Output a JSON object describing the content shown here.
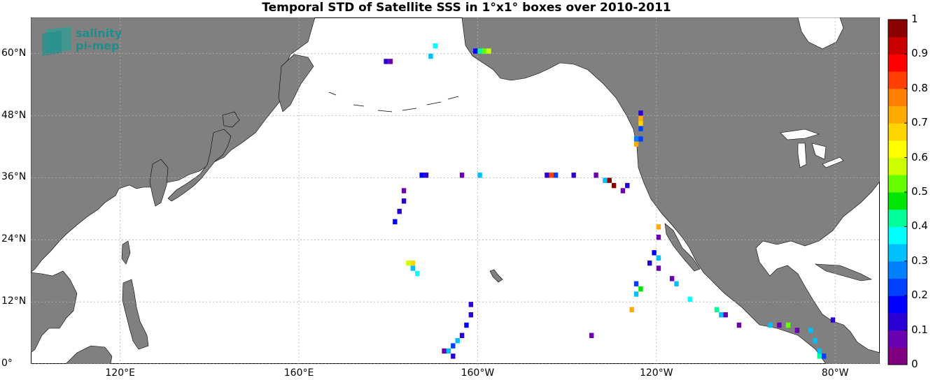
{
  "title": "Temporal STD of Satellite SSS in 1°x1° boxes over 2010-2011",
  "logo": {
    "line1": "salinity",
    "line2": "pi-mep"
  },
  "map": {
    "lon_range": [
      100,
      290
    ],
    "lat_range": [
      0,
      67
    ],
    "land_color": "#808080",
    "ocean_color": "#ffffff",
    "grid": true,
    "lat_ticks": [
      {
        "lat": 60,
        "label": "60°N"
      },
      {
        "lat": 48,
        "label": "48°N"
      },
      {
        "lat": 36,
        "label": "36°N"
      },
      {
        "lat": 24,
        "label": "24°N"
      },
      {
        "lat": 12,
        "label": "12°N"
      },
      {
        "lat": 0,
        "label": "0°"
      }
    ],
    "lon_ticks": [
      {
        "lon": 120,
        "label": "120°E"
      },
      {
        "lon": 160,
        "label": "160°E"
      },
      {
        "lon": 200,
        "label": "160°W"
      },
      {
        "lon": 240,
        "label": "120°W"
      },
      {
        "lon": 280,
        "label": "80°W"
      }
    ]
  },
  "colorbar": {
    "min": 0,
    "max": 1,
    "labels": [
      "1",
      "0.9",
      "0.8",
      "0.7",
      "0.6",
      "0.5",
      "0.4",
      "0.3",
      "0.2",
      "0.1",
      "0"
    ],
    "colors": [
      "#800080",
      "#6a00b0",
      "#2b00d4",
      "#0000ff",
      "#0040ff",
      "#0080ff",
      "#00bfff",
      "#00ffff",
      "#00ff99",
      "#00e600",
      "#66ff00",
      "#ccff00",
      "#ffff00",
      "#ffd400",
      "#ffaa00",
      "#ff7f00",
      "#ff4000",
      "#ff0000",
      "#c80000",
      "#8b0000"
    ]
  },
  "chart_data": {
    "type": "heatmap",
    "title": "Temporal STD of Satellite SSS in 1°x1° boxes over 2010-2011",
    "value_range": [
      0,
      1
    ],
    "cells": [
      {
        "lon": 179,
        "lat": 58,
        "v": 0.1
      },
      {
        "lon": 180,
        "lat": 58,
        "v": 0.05
      },
      {
        "lon": 189,
        "lat": 59,
        "v": 0.3
      },
      {
        "lon": 190,
        "lat": 61,
        "v": 0.35
      },
      {
        "lon": 199,
        "lat": 60,
        "v": 0.15
      },
      {
        "lon": 200,
        "lat": 60,
        "v": 0.4
      },
      {
        "lon": 201,
        "lat": 60,
        "v": 0.5
      },
      {
        "lon": 202,
        "lat": 60,
        "v": 0.55
      },
      {
        "lon": 236,
        "lat": 48,
        "v": 0.1
      },
      {
        "lon": 236,
        "lat": 47,
        "v": 0.7
      },
      {
        "lon": 236,
        "lat": 46,
        "v": 0.65
      },
      {
        "lon": 236,
        "lat": 45,
        "v": 0.2
      },
      {
        "lon": 235,
        "lat": 43,
        "v": 0.25
      },
      {
        "lon": 236,
        "lat": 43,
        "v": 0.2
      },
      {
        "lon": 235,
        "lat": 42,
        "v": 0.7
      },
      {
        "lon": 187,
        "lat": 36,
        "v": 0.15
      },
      {
        "lon": 188,
        "lat": 36,
        "v": 0.1
      },
      {
        "lon": 196,
        "lat": 36,
        "v": 0.05
      },
      {
        "lon": 200,
        "lat": 36,
        "v": 0.3
      },
      {
        "lon": 215,
        "lat": 36,
        "v": 0.1
      },
      {
        "lon": 216,
        "lat": 36,
        "v": 0.8
      },
      {
        "lon": 217,
        "lat": 36,
        "v": 0.2
      },
      {
        "lon": 221,
        "lat": 36,
        "v": 0.1
      },
      {
        "lon": 226,
        "lat": 36,
        "v": 0.05
      },
      {
        "lon": 228,
        "lat": 35,
        "v": 0.3
      },
      {
        "lon": 229,
        "lat": 35,
        "v": 1.0
      },
      {
        "lon": 230,
        "lat": 34,
        "v": 1.0
      },
      {
        "lon": 183,
        "lat": 33,
        "v": 0.05
      },
      {
        "lon": 183,
        "lat": 31,
        "v": 0.1
      },
      {
        "lon": 182,
        "lat": 29,
        "v": 0.1
      },
      {
        "lon": 181,
        "lat": 27,
        "v": 0.15
      },
      {
        "lon": 184,
        "lat": 19,
        "v": 0.55
      },
      {
        "lon": 185,
        "lat": 19,
        "v": 0.65
      },
      {
        "lon": 185,
        "lat": 18,
        "v": 0.3
      },
      {
        "lon": 186,
        "lat": 17,
        "v": 0.35
      },
      {
        "lon": 232,
        "lat": 33,
        "v": 0.05
      },
      {
        "lon": 233,
        "lat": 34,
        "v": 0.1
      },
      {
        "lon": 240,
        "lat": 26,
        "v": 0.7
      },
      {
        "lon": 240,
        "lat": 24,
        "v": 0.05
      },
      {
        "lon": 239,
        "lat": 21,
        "v": 0.15
      },
      {
        "lon": 240,
        "lat": 20,
        "v": 0.3
      },
      {
        "lon": 240,
        "lat": 18,
        "v": 0.05
      },
      {
        "lon": 238,
        "lat": 19,
        "v": 0.1
      },
      {
        "lon": 243,
        "lat": 16,
        "v": 0.05
      },
      {
        "lon": 244,
        "lat": 15,
        "v": 0.3
      },
      {
        "lon": 235,
        "lat": 15,
        "v": 0.2
      },
      {
        "lon": 236,
        "lat": 14,
        "v": 0.45
      },
      {
        "lon": 235,
        "lat": 13,
        "v": 0.3
      },
      {
        "lon": 234,
        "lat": 10,
        "v": 0.7
      },
      {
        "lon": 247,
        "lat": 12,
        "v": 0.35
      },
      {
        "lon": 253,
        "lat": 10,
        "v": 0.4
      },
      {
        "lon": 254,
        "lat": 9,
        "v": 0.3
      },
      {
        "lon": 255,
        "lat": 9,
        "v": 0.05
      },
      {
        "lon": 258,
        "lat": 7,
        "v": 0.05
      },
      {
        "lon": 265,
        "lat": 7,
        "v": 0.3
      },
      {
        "lon": 267,
        "lat": 7,
        "v": 0.05
      },
      {
        "lon": 269,
        "lat": 7,
        "v": 0.5
      },
      {
        "lon": 271,
        "lat": 6,
        "v": 0.05
      },
      {
        "lon": 274,
        "lat": 6,
        "v": 0.3
      },
      {
        "lon": 275,
        "lat": 4,
        "v": 0.3
      },
      {
        "lon": 276,
        "lat": 2,
        "v": 0.3
      },
      {
        "lon": 279,
        "lat": 8,
        "v": 0.1
      },
      {
        "lon": 276,
        "lat": 1,
        "v": 0.4
      },
      {
        "lon": 277,
        "lat": 1,
        "v": 0.2
      },
      {
        "lon": 225,
        "lat": 5,
        "v": 0.05
      },
      {
        "lon": 198,
        "lat": 11,
        "v": 0.1
      },
      {
        "lon": 198,
        "lat": 9,
        "v": 0.1
      },
      {
        "lon": 197,
        "lat": 7,
        "v": 0.15
      },
      {
        "lon": 196,
        "lat": 5,
        "v": 0.1
      },
      {
        "lon": 195,
        "lat": 4,
        "v": 0.3
      },
      {
        "lon": 194,
        "lat": 3,
        "v": 0.2
      },
      {
        "lon": 193,
        "lat": 2,
        "v": 0.3
      },
      {
        "lon": 192,
        "lat": 2,
        "v": 0.05
      },
      {
        "lon": 194,
        "lat": 1,
        "v": 0.1
      }
    ]
  }
}
